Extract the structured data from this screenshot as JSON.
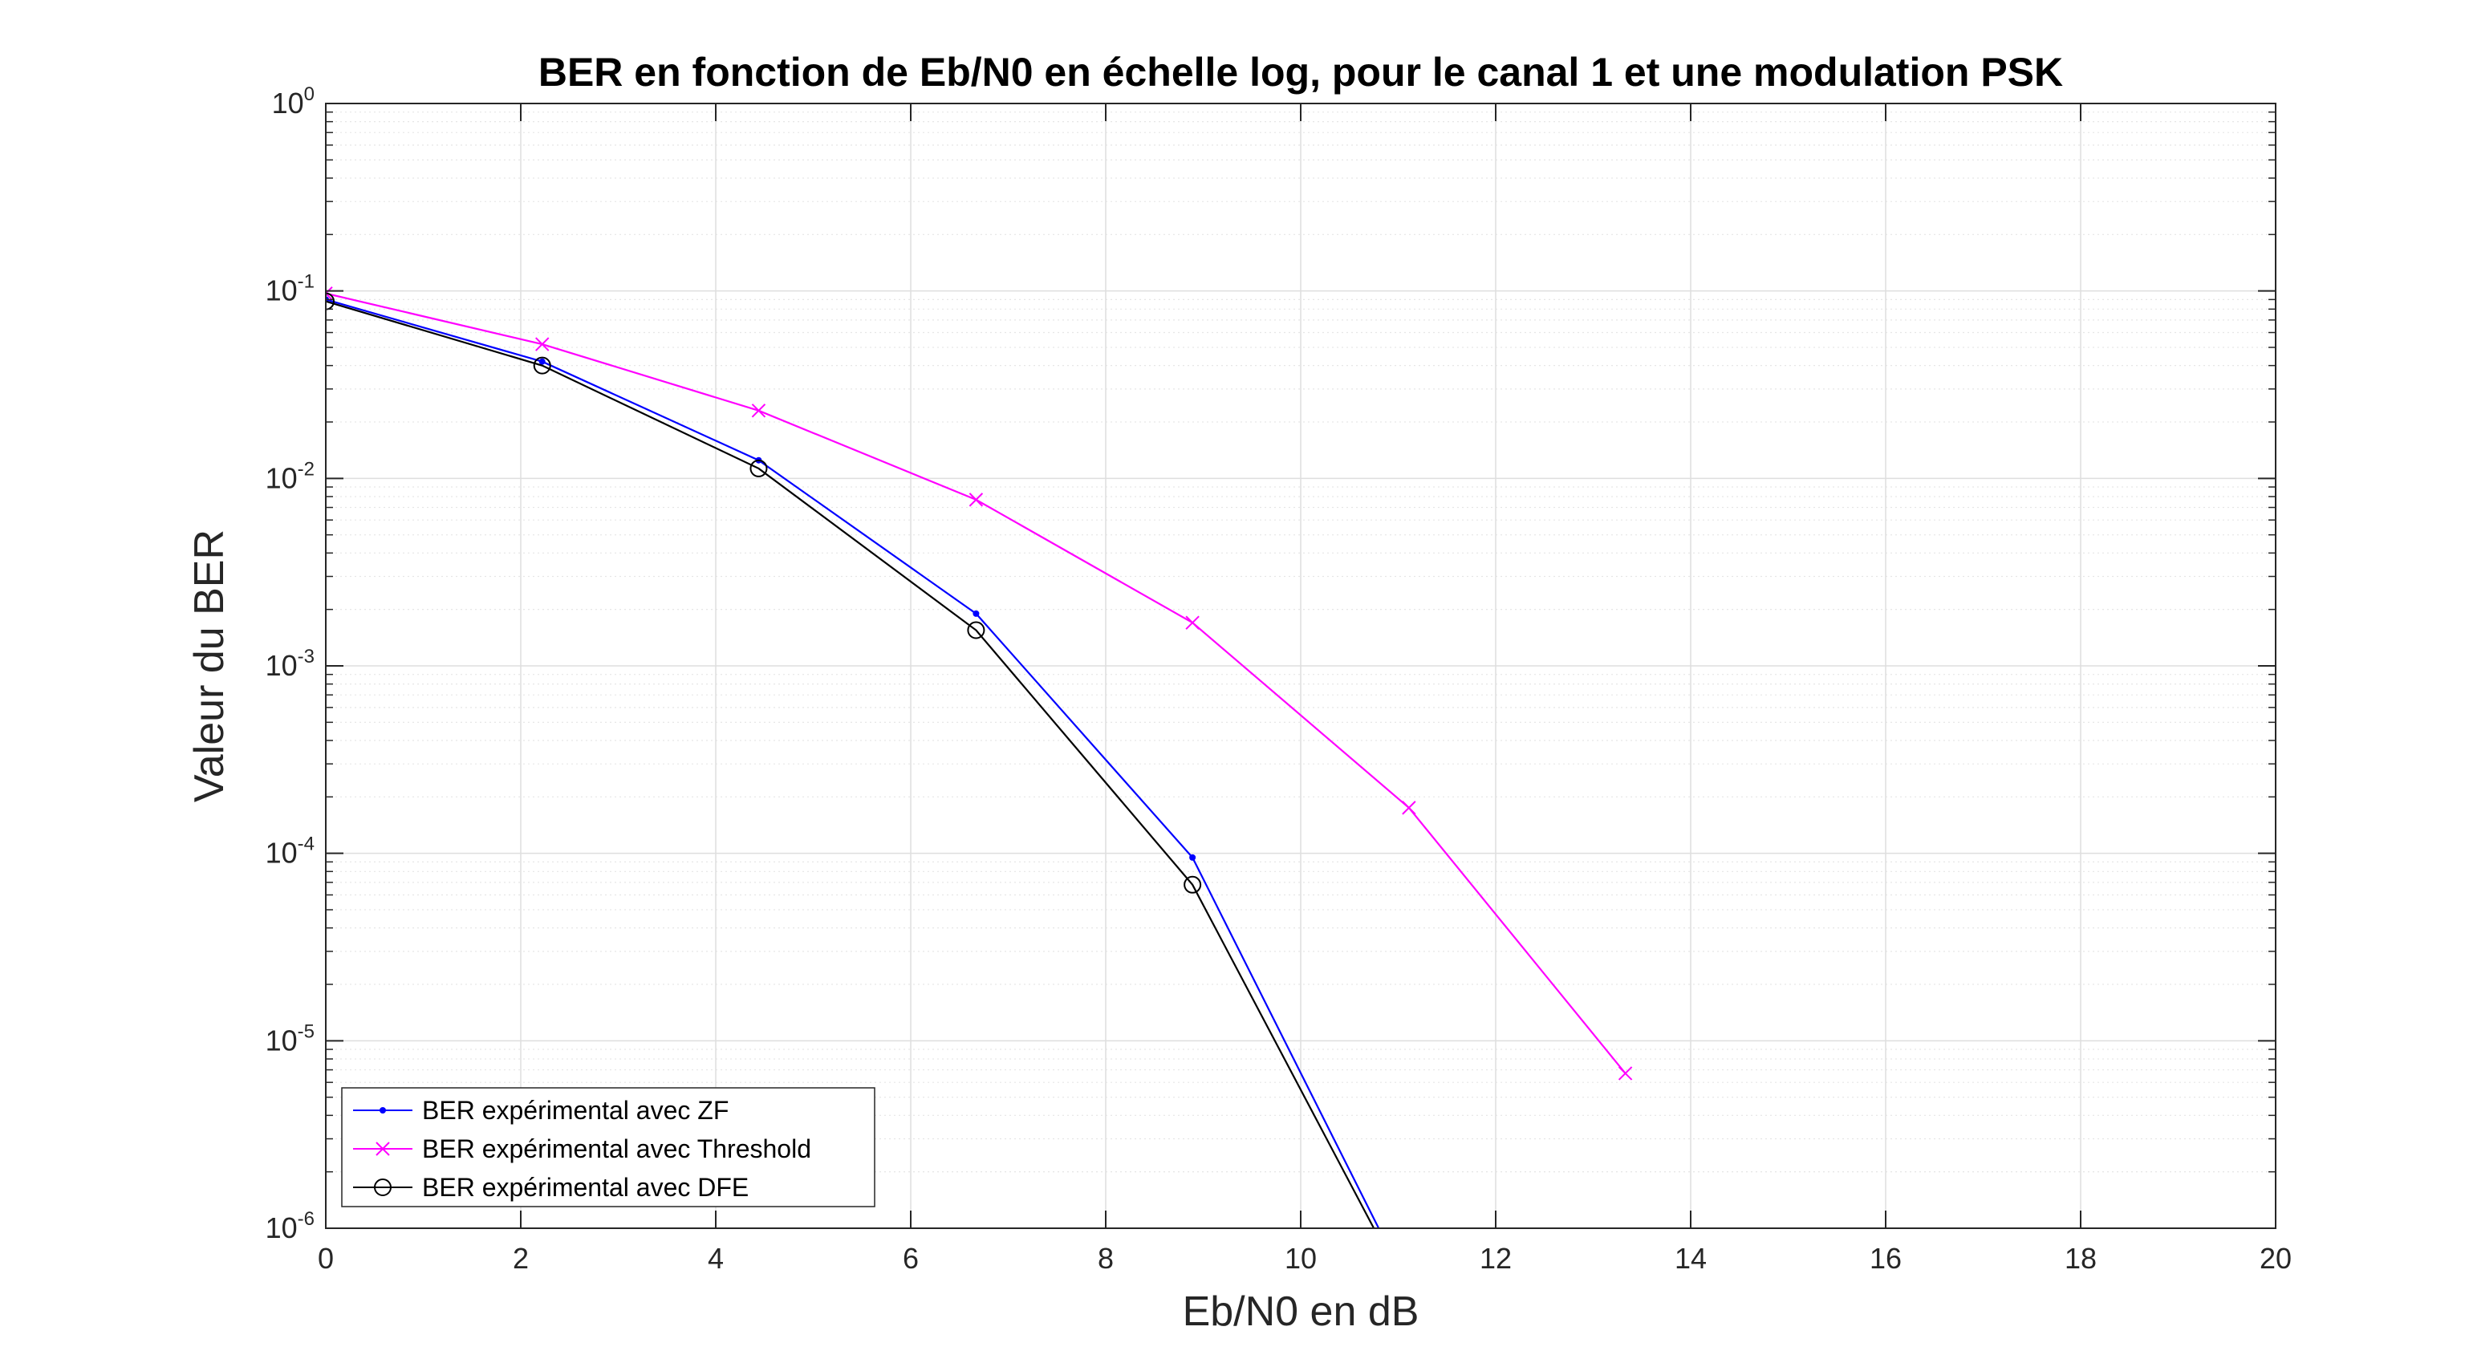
{
  "chart_data": {
    "type": "line",
    "title": "BER en fonction de Eb/N0 en échelle log, pour le canal 1 et une modulation PSK",
    "xlabel": "Eb/N0 en dB",
    "ylabel": "Valeur du BER",
    "xlim": [
      0,
      20
    ],
    "ylim": [
      1e-06,
      1
    ],
    "yscale": "log",
    "grid": true,
    "minor_grid": true,
    "legend_position": "bottom-left",
    "x_ticks": [
      "0",
      "2",
      "4",
      "6",
      "8",
      "10",
      "12",
      "14",
      "16",
      "18",
      "20"
    ],
    "y_ticks": [
      {
        "base": "10",
        "exp": "0"
      },
      {
        "base": "10",
        "exp": "-1"
      },
      {
        "base": "10",
        "exp": "-2"
      },
      {
        "base": "10",
        "exp": "-3"
      },
      {
        "base": "10",
        "exp": "-4"
      },
      {
        "base": "10",
        "exp": "-5"
      },
      {
        "base": "10",
        "exp": "-6"
      }
    ],
    "series": [
      {
        "name": "BER expérimental avec ZF",
        "color": "#0000ff",
        "marker": "dot",
        "x": [
          0,
          2.22,
          4.44,
          6.67,
          8.89,
          10.8
        ],
        "y": [
          0.09,
          0.042,
          0.0125,
          0.0019,
          9.5e-05,
          1e-06
        ]
      },
      {
        "name": "BER expérimental avec Threshold",
        "color": "#ff00ff",
        "marker": "x",
        "x": [
          0,
          2.22,
          4.44,
          6.67,
          8.89,
          11.11,
          13.33
        ],
        "y": [
          0.097,
          0.052,
          0.023,
          0.0077,
          0.0017,
          0.000175,
          6.7e-06
        ]
      },
      {
        "name": "BER expérimental avec DFE",
        "color": "#000000",
        "marker": "circle",
        "x": [
          0,
          2.22,
          4.44,
          6.67,
          8.89,
          10.75
        ],
        "y": [
          0.088,
          0.04,
          0.0113,
          0.00155,
          6.8e-05,
          1e-06
        ]
      }
    ]
  }
}
